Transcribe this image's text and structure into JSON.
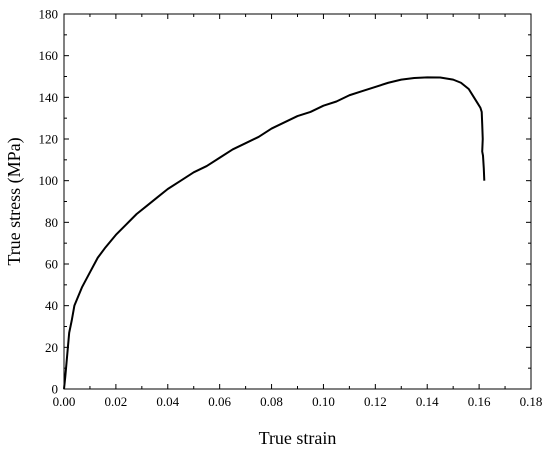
{
  "chart_data": {
    "type": "line",
    "xlabel": "True strain",
    "ylabel": "True stress (MPa)",
    "xlim": [
      0,
      0.18
    ],
    "ylim": [
      0,
      180
    ],
    "xticks": [
      0.0,
      0.02,
      0.04,
      0.06,
      0.08,
      0.1,
      0.12,
      0.14,
      0.16,
      0.18
    ],
    "xtick_labels": [
      "0.00",
      "0.02",
      "0.04",
      "0.06",
      "0.08",
      "0.10",
      "0.12",
      "0.14",
      "0.16",
      "0.18"
    ],
    "yticks": [
      0,
      20,
      40,
      60,
      80,
      100,
      120,
      140,
      160,
      180
    ],
    "ytick_labels": [
      "0",
      "20",
      "40",
      "60",
      "80",
      "100",
      "120",
      "140",
      "160",
      "180"
    ],
    "grid": false,
    "line_color": "#000000",
    "series": [
      {
        "x": [
          0.0,
          0.0005,
          0.001,
          0.0015,
          0.002,
          0.003,
          0.004,
          0.005,
          0.007,
          0.01,
          0.013,
          0.016,
          0.02,
          0.024,
          0.028,
          0.032,
          0.036,
          0.04,
          0.045,
          0.05,
          0.055,
          0.06,
          0.065,
          0.07,
          0.075,
          0.08,
          0.085,
          0.09,
          0.095,
          0.1,
          0.105,
          0.11,
          0.115,
          0.12,
          0.125,
          0.13,
          0.135,
          0.14,
          0.145,
          0.15,
          0.153,
          0.156,
          0.158,
          0.1595,
          0.1605,
          0.161,
          0.1612,
          0.1614,
          0.1612,
          0.1615,
          0.1618,
          0.162
        ],
        "y": [
          0,
          6,
          13,
          20,
          27,
          33,
          40,
          43,
          49,
          56,
          63,
          68,
          74,
          79,
          84,
          88,
          92,
          96,
          100,
          104,
          107,
          111,
          115,
          118,
          121,
          125,
          128,
          131,
          133,
          136,
          138,
          141,
          143,
          145,
          147,
          148.5,
          149.3,
          149.6,
          149.5,
          148.5,
          147,
          144,
          140,
          137,
          135,
          133,
          127,
          120,
          114,
          112,
          106,
          100
        ]
      }
    ]
  }
}
